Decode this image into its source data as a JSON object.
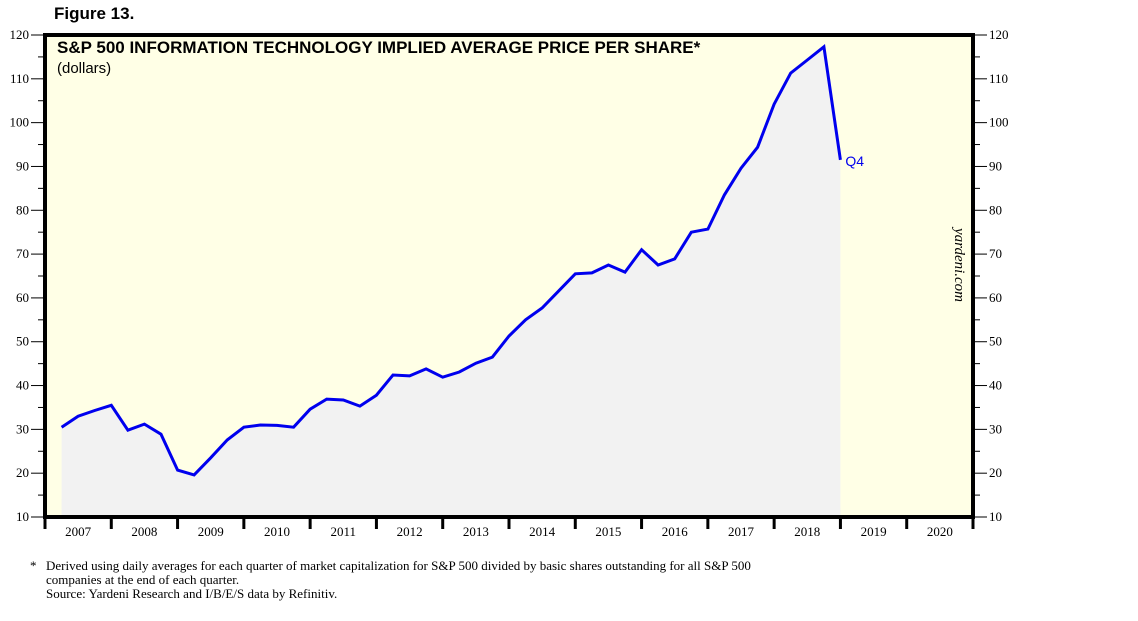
{
  "figure_label": "Figure 13.",
  "chart_data": {
    "type": "area",
    "title": "S&P 500 INFORMATION TECHNOLOGY IMPLIED AVERAGE PRICE PER SHARE*",
    "subtitle": "(dollars)",
    "xlabel": "",
    "ylabel": "",
    "ylim": [
      10,
      120
    ],
    "yticks": [
      10,
      20,
      30,
      40,
      50,
      60,
      70,
      80,
      90,
      100,
      110,
      120
    ],
    "xlim": [
      2007,
      2021
    ],
    "xticks": [
      "2007",
      "2008",
      "2009",
      "2010",
      "2011",
      "2012",
      "2013",
      "2014",
      "2015",
      "2016",
      "2017",
      "2018",
      "2019",
      "2020"
    ],
    "grid": false,
    "frequency": "quarterly",
    "series": [
      {
        "name": "S&P 500 Information Technology implied average price per share",
        "color": "#0000ee",
        "fill": "#f2f2f2",
        "start": "2007 Q1",
        "end": "2018 Q4",
        "values": [
          30.5,
          33.0,
          34.3,
          35.5,
          29.8,
          31.2,
          28.9,
          20.7,
          19.6,
          23.5,
          27.6,
          30.5,
          31.0,
          30.9,
          30.5,
          34.6,
          36.9,
          36.7,
          35.3,
          37.8,
          42.4,
          42.2,
          43.8,
          41.9,
          43.1,
          45.1,
          46.5,
          51.3,
          55.0,
          57.7,
          61.6,
          65.5,
          65.7,
          67.5,
          65.9,
          71.0,
          67.5,
          68.9,
          75.0,
          75.7,
          83.5,
          89.6,
          94.4,
          104.2,
          111.3,
          114.3,
          117.3,
          91.5
        ]
      }
    ],
    "annotations": [
      {
        "text": "Q4",
        "at": "2018 Q4",
        "color": "#0000ee"
      }
    ],
    "watermark": "yardeni.com",
    "background": "#ffffe6"
  },
  "footnotes": {
    "line1": "Derived using daily averages for each quarter of market capitalization for S&P 500 divided by basic shares outstanding for all S&P 500",
    "line2": "companies at the end of each quarter.",
    "source": "Source: Yardeni Research and I/B/E/S data by Refinitiv.",
    "asterisk": "*"
  }
}
